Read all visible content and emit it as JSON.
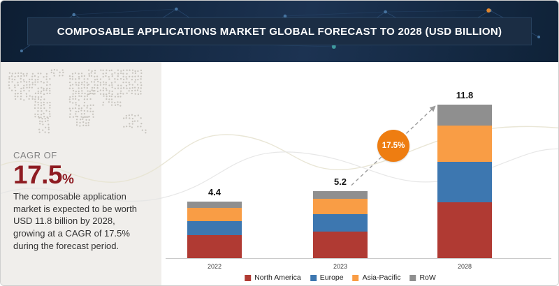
{
  "banner": {
    "title": "COMPOSABLE APPLICATIONS MARKET GLOBAL FORECAST TO 2028 (USD BILLION)"
  },
  "sidebar": {
    "cagr_label": "CAGR OF",
    "cagr_value": "17.5",
    "cagr_unit": "%",
    "description": "The composable application market is expected to be worth USD 11.8 billion by 2028, growing at a CAGR of 17.5% during the forecast period."
  },
  "growth_badge": {
    "label": "17.5%",
    "color": "#ee7d11"
  },
  "colors": {
    "banner_bg": "#16293f",
    "panel_bg": "#f0eeeb",
    "cagr_text": "#8e1c22"
  },
  "chart_data": {
    "type": "bar",
    "stacked": true,
    "title": "Composable Applications Market Global Forecast to 2028 (USD Billion)",
    "categories": [
      "2022",
      "2023",
      "2028"
    ],
    "series": [
      {
        "name": "North America",
        "color": "#b03a33",
        "values": [
          1.8,
          2.1,
          4.3
        ]
      },
      {
        "name": "Europe",
        "color": "#3d77b0",
        "values": [
          1.1,
          1.3,
          3.1
        ]
      },
      {
        "name": "Asia-Pacific",
        "color": "#f99d45",
        "values": [
          1.0,
          1.2,
          2.8
        ]
      },
      {
        "name": "RoW",
        "color": "#8f8f8f",
        "values": [
          0.5,
          0.6,
          1.6
        ]
      }
    ],
    "totals": [
      4.4,
      5.2,
      11.8
    ],
    "xlabel": "",
    "ylabel": "",
    "ylim": [
      0,
      12
    ],
    "grid": false,
    "legend_position": "bottom",
    "annotation": {
      "text": "17.5%",
      "type": "cagr-growth-arrow",
      "from": "2023",
      "to": "2028"
    }
  }
}
